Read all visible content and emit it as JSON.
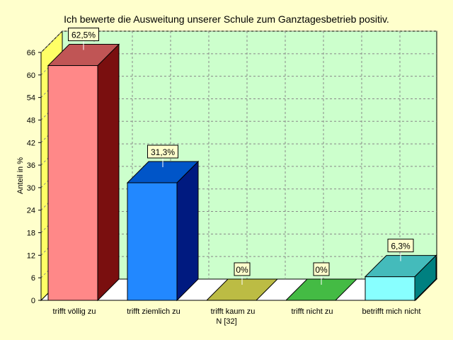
{
  "colors": {
    "page_bg": "#ffffcc",
    "plot_bg": "#ccffcc",
    "side_wall": "#ffff66",
    "floor_band": "#ffffff"
  },
  "chart_data": {
    "type": "bar",
    "title": "Ich bewerte die Ausweitung unserer Schule zum Ganztagesbetrieb positiv.",
    "ylabel": "Anteil in %",
    "xlabel": "",
    "footnote": "N [32]",
    "ylim": [
      0,
      66
    ],
    "yticks": [
      0,
      6,
      12,
      18,
      24,
      30,
      36,
      42,
      48,
      54,
      60,
      66
    ],
    "grid": true,
    "categories": [
      "trifft völlig zu",
      "trifft ziemlich zu",
      "trifft kaum zu",
      "trifft nicht zu",
      "betrifft mich nicht"
    ],
    "values": [
      62.5,
      31.3,
      0,
      0,
      6.3
    ],
    "data_labels": [
      "62,5%",
      "31,3%",
      "0%",
      "0%",
      "6,3%"
    ],
    "bar_colors": [
      {
        "front": "#ff8888",
        "side": "#7a0f0f",
        "top": "#c05555"
      },
      {
        "front": "#2288ff",
        "side": "#001a80",
        "top": "#0055c8"
      },
      {
        "front": "#bcbc44",
        "side": "#7a7a1e",
        "top": "#bcbc44"
      },
      {
        "front": "#44bb44",
        "side": "#1e7a1e",
        "top": "#44bb44"
      },
      {
        "front": "#88ffff",
        "side": "#008080",
        "top": "#44bbbb"
      }
    ]
  }
}
